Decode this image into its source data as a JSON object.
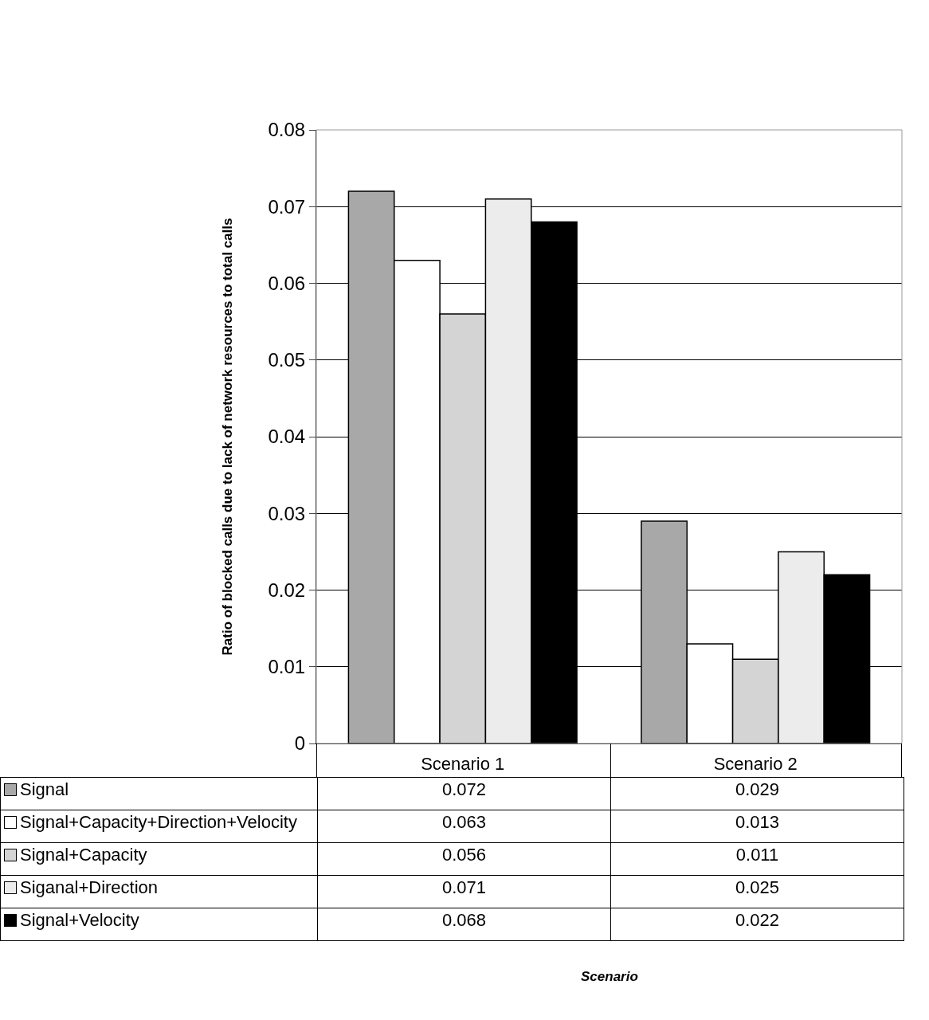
{
  "chart_data": {
    "type": "bar",
    "annotations": [
      "Scenario"
    ],
    "ylabel": "Ratio of blocked calls due to lack of network resources to total calls",
    "categories": [
      "Scenario 1",
      "Scenario 2"
    ],
    "series": [
      {
        "name": "Signal",
        "color": "#a8a8a8",
        "values": [
          0.072,
          0.029
        ]
      },
      {
        "name": "Signal+Capacity+Direction+Velocity",
        "color": "#ffffff",
        "values": [
          0.063,
          0.013
        ]
      },
      {
        "name": "Signal+Capacity",
        "color": "#d4d4d4",
        "values": [
          0.056,
          0.011
        ]
      },
      {
        "name": "Siganal+Direction",
        "color": "#ececec",
        "values": [
          0.071,
          0.025
        ]
      },
      {
        "name": "Signal+Velocity",
        "color": "#000000",
        "values": [
          0.068,
          0.022
        ]
      }
    ],
    "ylim": [
      0,
      0.08
    ],
    "yticks": [
      0,
      0.01,
      0.02,
      0.03,
      0.04,
      0.05,
      0.06,
      0.07,
      0.08
    ],
    "grid": "y",
    "legend": "bottom left",
    "data_labels": true
  }
}
